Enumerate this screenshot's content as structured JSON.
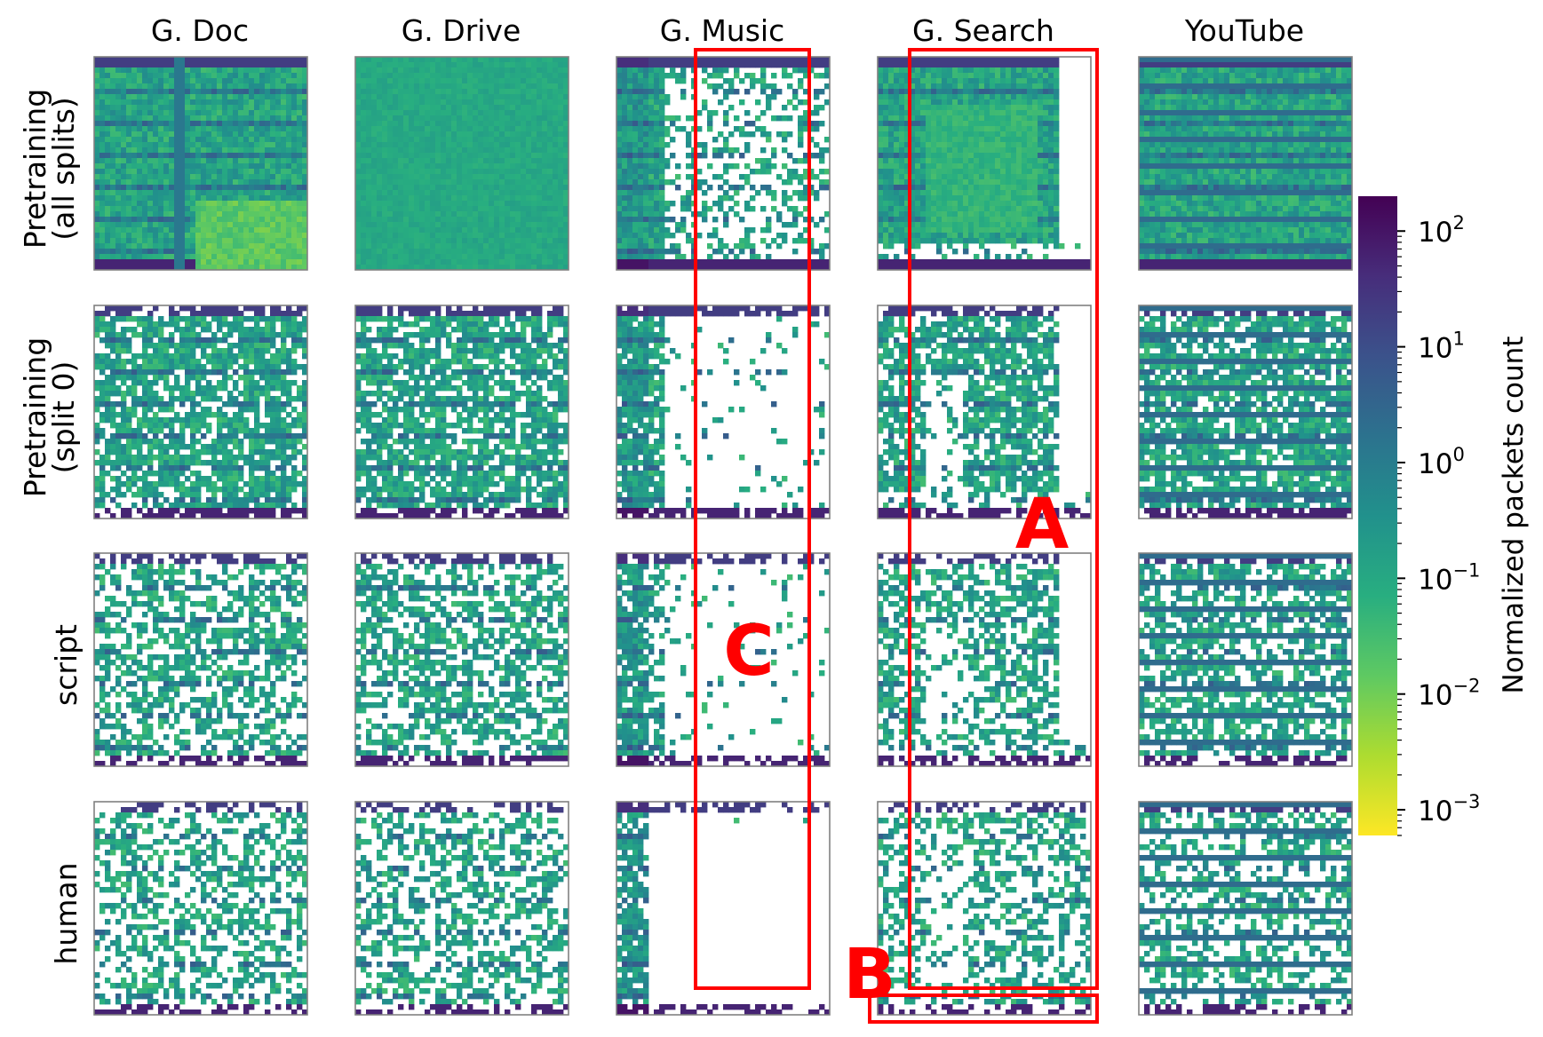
{
  "chart_data": {
    "type": "heatmap",
    "columns": [
      "G. Doc",
      "G. Drive",
      "G. Music",
      "G. Search",
      "YouTube"
    ],
    "rows": [
      [
        "Pretraining",
        "(all splits)"
      ],
      [
        "Pretraining",
        "(split 0)"
      ],
      [
        "script"
      ],
      [
        "human"
      ]
    ],
    "colorbar": {
      "label": "Normalized packets count",
      "scale": "log",
      "range": [
        0.0006,
        200
      ],
      "ticks": [
        {
          "base": "10",
          "exp": "2",
          "value": 100
        },
        {
          "base": "10",
          "exp": "1",
          "value": 10
        },
        {
          "base": "10",
          "exp": "0",
          "value": 1
        },
        {
          "base": "10",
          "exp": "−1",
          "value": 0.1
        },
        {
          "base": "10",
          "exp": "−2",
          "value": 0.01
        },
        {
          "base": "10",
          "exp": "−3",
          "value": 0.001
        }
      ],
      "colormap": "viridis (reversed: yellow = low, dark purple = high)"
    },
    "annotations": [
      {
        "label": "A",
        "color": "#ff0000"
      },
      {
        "label": "B",
        "color": "#ff0000"
      },
      {
        "label": "C",
        "color": "#ff0000"
      }
    ]
  },
  "colors": {
    "highlight": "#ff0000",
    "frame": "#808080",
    "viridis_low": "#fde725",
    "viridis_high": "#440154"
  }
}
